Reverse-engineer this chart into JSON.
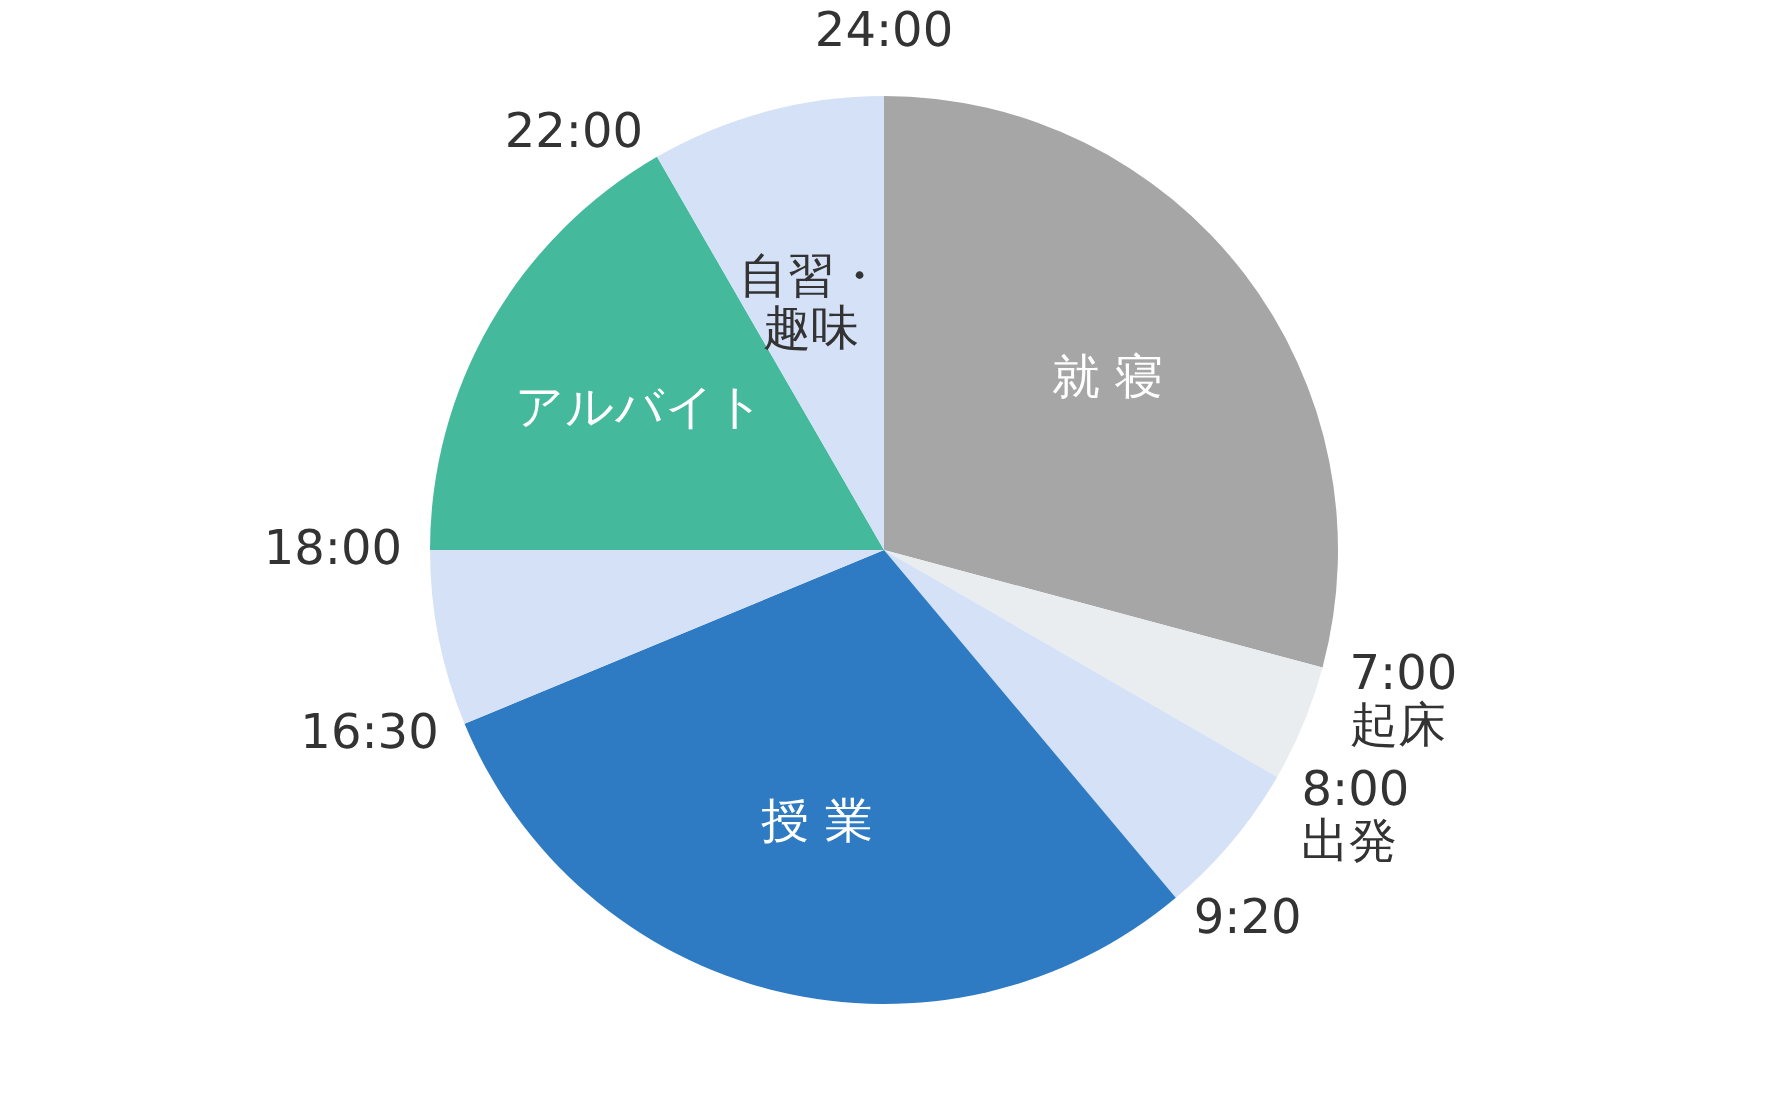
{
  "chart_data": {
    "type": "pie",
    "categories": [
      "就 寝",
      null,
      null,
      "授 業",
      null,
      "アルバイト",
      "自習・趣味"
    ],
    "values": [
      29.1667,
      4.1667,
      5.5556,
      29.8611,
      6.25,
      16.6667,
      8.3333
    ],
    "colors": [
      "#a6a6a6",
      "#e9edf0",
      "#d4e1f6",
      "#2e7bc4",
      "#d4e1f6",
      "#44b99c",
      "#d4e1f6"
    ],
    "annotations": [
      "24:00",
      "7:00\n起床",
      "8:00\n出発",
      "9:20",
      "16:30",
      "18:00",
      "22:00"
    ]
  }
}
